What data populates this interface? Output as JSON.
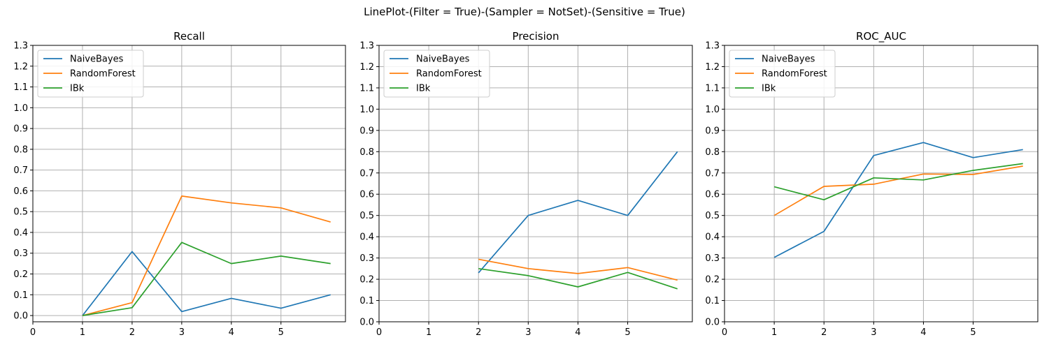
{
  "figure": {
    "suptitle": "LinePlot-(Filter = True)-(Sampler = NotSet)-(Sensitive = True)"
  },
  "chart_data": [
    {
      "type": "line",
      "title": "Recall",
      "xlabel": "",
      "ylabel": "",
      "x": [
        1,
        2,
        3,
        4,
        5,
        6
      ],
      "xticks": [
        0,
        1,
        2,
        3,
        4,
        5
      ],
      "yticks": [
        0.0,
        0.1,
        0.2,
        0.3,
        0.4,
        0.5,
        0.6,
        0.7,
        0.8,
        0.9,
        1.0,
        1.1,
        1.2,
        1.3
      ],
      "ytick_labels": [
        "0.0",
        "0.1",
        "0.2",
        "0.3",
        "0.4",
        "0.5",
        "0.6",
        "0.7",
        "0.8",
        "0.9",
        "1.0",
        "1.1",
        "1.2",
        "1.3"
      ],
      "xlim": [
        0,
        6.3
      ],
      "ylim": [
        -0.03,
        1.3
      ],
      "grid": true,
      "legend_position": "top-left",
      "series": [
        {
          "name": "NaiveBayes",
          "color": "#1f77b4",
          "values": [
            0.0,
            0.308,
            0.019,
            0.083,
            0.035,
            0.1
          ]
        },
        {
          "name": "RandomForest",
          "color": "#ff7f0e",
          "values": [
            0.0,
            0.062,
            0.575,
            0.542,
            0.518,
            0.45
          ]
        },
        {
          "name": "IBk",
          "color": "#2ca02c",
          "values": [
            0.0,
            0.038,
            0.352,
            0.25,
            0.286,
            0.25
          ]
        }
      ]
    },
    {
      "type": "line",
      "title": "Precision",
      "xlabel": "",
      "ylabel": "",
      "x": [
        2,
        3,
        4,
        5,
        6
      ],
      "xticks": [
        0,
        1,
        2,
        3,
        4,
        5
      ],
      "yticks": [
        0.0,
        0.1,
        0.2,
        0.3,
        0.4,
        0.5,
        0.6,
        0.7,
        0.8,
        0.9,
        1.0,
        1.1,
        1.2,
        1.3
      ],
      "ytick_labels": [
        "0.0",
        "0.1",
        "0.2",
        "0.3",
        "0.4",
        "0.5",
        "0.6",
        "0.7",
        "0.8",
        "0.9",
        "1.0",
        "1.1",
        "1.2",
        "1.3"
      ],
      "xlim": [
        0,
        6.3
      ],
      "ylim": [
        0.0,
        1.3
      ],
      "grid": true,
      "legend_position": "top-left",
      "series": [
        {
          "name": "NaiveBayes",
          "color": "#1f77b4",
          "values": [
            0.23,
            0.5,
            0.571,
            0.5,
            0.8
          ]
        },
        {
          "name": "RandomForest",
          "color": "#ff7f0e",
          "values": [
            0.294,
            0.25,
            0.227,
            0.255,
            0.196
          ]
        },
        {
          "name": "IBk",
          "color": "#2ca02c",
          "values": [
            0.25,
            0.217,
            0.164,
            0.232,
            0.155
          ]
        }
      ]
    },
    {
      "type": "line",
      "title": "ROC_AUC",
      "xlabel": "",
      "ylabel": "",
      "x": [
        1,
        2,
        3,
        4,
        5,
        6
      ],
      "xticks": [
        0,
        1,
        2,
        3,
        4,
        5
      ],
      "yticks": [
        0.0,
        0.1,
        0.2,
        0.3,
        0.4,
        0.5,
        0.6,
        0.7,
        0.8,
        0.9,
        1.0,
        1.1,
        1.2,
        1.3
      ],
      "ytick_labels": [
        "0.0",
        "0.1",
        "0.2",
        "0.3",
        "0.4",
        "0.5",
        "0.6",
        "0.7",
        "0.8",
        "0.9",
        "1.0",
        "1.1",
        "1.2",
        "1.3"
      ],
      "xlim": [
        0,
        6.3
      ],
      "ylim": [
        0.0,
        1.3
      ],
      "grid": true,
      "legend_position": "top-left",
      "series": [
        {
          "name": "NaiveBayes",
          "color": "#1f77b4",
          "values": [
            0.303,
            0.425,
            0.782,
            0.843,
            0.772,
            0.81
          ]
        },
        {
          "name": "RandomForest",
          "color": "#ff7f0e",
          "values": [
            0.5,
            0.637,
            0.647,
            0.695,
            0.693,
            0.732
          ]
        },
        {
          "name": "IBk",
          "color": "#2ca02c",
          "values": [
            0.635,
            0.574,
            0.677,
            0.667,
            0.712,
            0.744
          ]
        }
      ]
    }
  ]
}
